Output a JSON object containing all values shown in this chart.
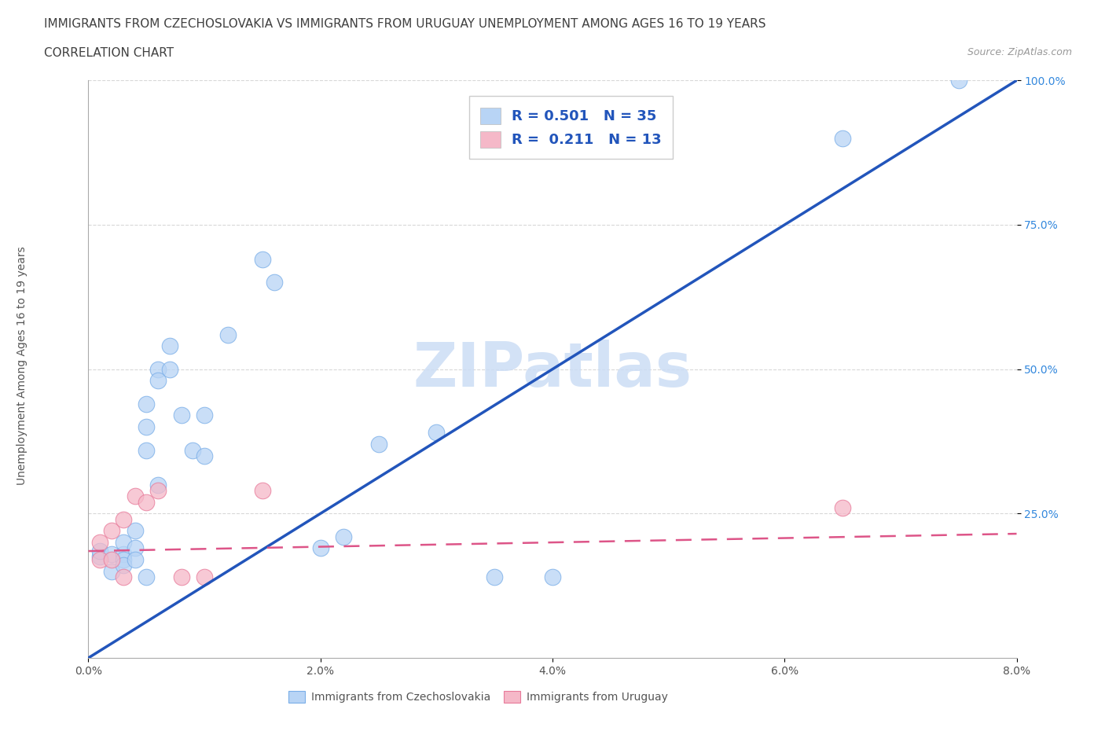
{
  "title_line1": "IMMIGRANTS FROM CZECHOSLOVAKIA VS IMMIGRANTS FROM URUGUAY UNEMPLOYMENT AMONG AGES 16 TO 19 YEARS",
  "title_line2": "CORRELATION CHART",
  "source_text": "Source: ZipAtlas.com",
  "xlabel_czech": "Immigrants from Czechoslovakia",
  "xlabel_uruguay": "Immigrants from Uruguay",
  "ylabel": "Unemployment Among Ages 16 to 19 years",
  "xlim": [
    0.0,
    0.08
  ],
  "ylim": [
    0.0,
    1.0
  ],
  "xticks": [
    0.0,
    0.02,
    0.04,
    0.06,
    0.08
  ],
  "xtick_labels": [
    "0.0%",
    "2.0%",
    "4.0%",
    "6.0%",
    "8.0%"
  ],
  "yticks": [
    0.25,
    0.5,
    0.75,
    1.0
  ],
  "ytick_labels": [
    "25.0%",
    "50.0%",
    "75.0%",
    "100.0%"
  ],
  "r_czech": 0.501,
  "n_czech": 35,
  "r_uruguay": 0.211,
  "n_uruguay": 13,
  "czech_color": "#b8d4f5",
  "czech_edge_color": "#7aaee8",
  "czech_line_color": "#2255bb",
  "uruguay_color": "#f5b8c8",
  "uruguay_edge_color": "#e87a9a",
  "uruguay_line_color": "#dd5588",
  "watermark": "ZIPatlas",
  "watermark_color": "#ccddf5",
  "czech_points_x": [
    0.001,
    0.001,
    0.002,
    0.002,
    0.003,
    0.003,
    0.003,
    0.003,
    0.004,
    0.004,
    0.004,
    0.005,
    0.005,
    0.005,
    0.005,
    0.006,
    0.006,
    0.006,
    0.007,
    0.007,
    0.008,
    0.009,
    0.01,
    0.01,
    0.012,
    0.015,
    0.016,
    0.02,
    0.022,
    0.025,
    0.03,
    0.035,
    0.04,
    0.065,
    0.075
  ],
  "czech_points_y": [
    0.175,
    0.185,
    0.15,
    0.18,
    0.18,
    0.17,
    0.2,
    0.16,
    0.22,
    0.19,
    0.17,
    0.44,
    0.4,
    0.36,
    0.14,
    0.5,
    0.48,
    0.3,
    0.54,
    0.5,
    0.42,
    0.36,
    0.42,
    0.35,
    0.56,
    0.69,
    0.65,
    0.19,
    0.21,
    0.37,
    0.39,
    0.14,
    0.14,
    0.9,
    1.0
  ],
  "uruguay_points_x": [
    0.001,
    0.001,
    0.002,
    0.002,
    0.003,
    0.003,
    0.004,
    0.005,
    0.006,
    0.008,
    0.01,
    0.015,
    0.065
  ],
  "uruguay_points_y": [
    0.2,
    0.17,
    0.22,
    0.17,
    0.24,
    0.14,
    0.28,
    0.27,
    0.29,
    0.14,
    0.14,
    0.29,
    0.26
  ],
  "bg_color": "#ffffff",
  "grid_color": "#d8d8d8",
  "axis_color": "#aaaaaa",
  "label_color": "#555555",
  "tick_y_color": "#3388dd",
  "legend_color": "#2255bb",
  "title_color": "#404040"
}
